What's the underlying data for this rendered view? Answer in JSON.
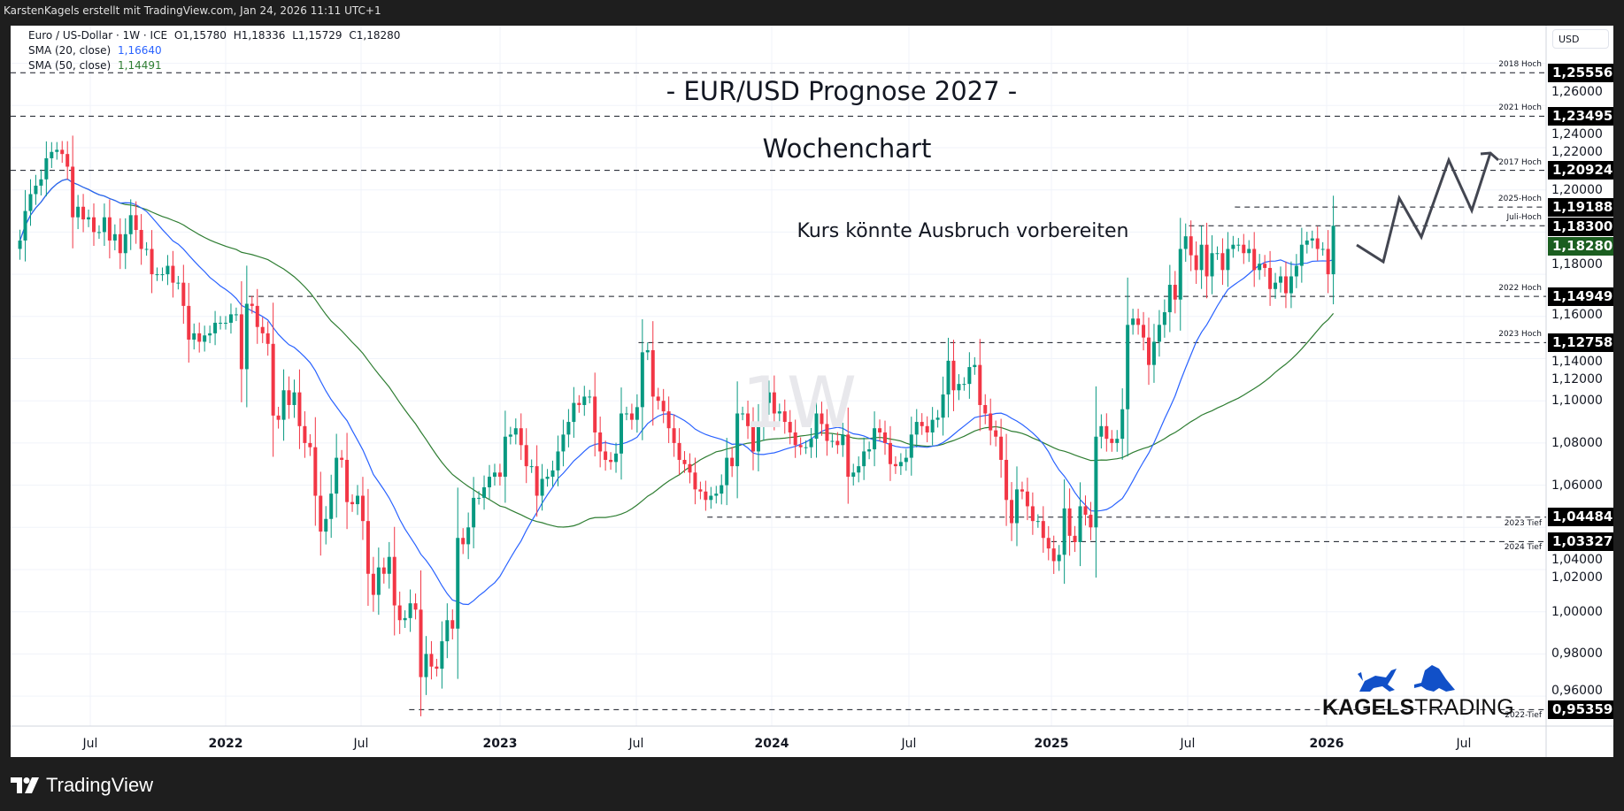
{
  "header": {
    "credit": "KarstenKagels erstellt mit TradingView.com, Jan 24, 2026 11:11 UTC+1"
  },
  "legend": {
    "symbol": "Euro / US-Dollar · 1W · ICE",
    "o": "O1,15780",
    "h": "H1,18336",
    "l": "L1,15729",
    "c": "C1,18280",
    "sma20_label": "SMA (20, close)",
    "sma20_value": "1,16640",
    "sma50_label": "SMA (50, close)",
    "sma50_value": "1,14491"
  },
  "annotations": {
    "title": "- EUR/USD Prognose 2027 -",
    "subtitle": "Wochenchart",
    "note": "Kurs könnte Ausbruch vorbereiten",
    "watermark": "1W"
  },
  "price_axis": {
    "currency": "USD",
    "ticks": [
      "1,26000",
      "1,24000",
      "1,22000",
      "1,20000",
      "1,18000",
      "1,16000",
      "1,14000",
      "1,12000",
      "1,10000",
      "1,08000",
      "1,06000",
      "1,04000",
      "1,02000",
      "1,00000",
      "0,98000",
      "0,96000"
    ],
    "current": {
      "value": "1,18280",
      "color": "#1b5e20"
    }
  },
  "levels": [
    {
      "label": "2018 Hoch",
      "value": "1,25556",
      "price": 1.25556,
      "from": "start"
    },
    {
      "label": "2021 Hoch",
      "value": "1,23495",
      "price": 1.23495,
      "from": "start"
    },
    {
      "label": "2017 Hoch",
      "value": "1,20924",
      "price": 1.20924,
      "from": "start"
    },
    {
      "label": "2025-Hoch",
      "value": "1,19188",
      "price": 1.19188,
      "from": "2025-09"
    },
    {
      "label": "Juli-Hoch",
      "value": "1,18300",
      "price": 1.183,
      "from": "2025-07"
    },
    {
      "label": "2022 Hoch",
      "value": "1,14949",
      "price": 1.14949,
      "from": "2022-02"
    },
    {
      "label": "2023 Hoch",
      "value": "1,12758",
      "price": 1.12758,
      "from": "2023-07"
    },
    {
      "label": "2023 Tief",
      "value": "1,04484",
      "price": 1.04484,
      "from": "2023-10"
    },
    {
      "label": "2024 Tief",
      "value": "1,03327",
      "price": 1.03327,
      "from": "2025-01"
    },
    {
      "label": "2022-Tief",
      "value": "0,95359",
      "price": 0.95359,
      "from": "2022-09"
    }
  ],
  "time_axis": [
    {
      "t": "Jul",
      "bold": false
    },
    {
      "t": "2022",
      "bold": true
    },
    {
      "t": "Jul",
      "bold": false
    },
    {
      "t": "2023",
      "bold": true
    },
    {
      "t": "Jul",
      "bold": false
    },
    {
      "t": "2024",
      "bold": true
    },
    {
      "t": "Jul",
      "bold": false
    },
    {
      "t": "2025",
      "bold": true
    },
    {
      "t": "Jul",
      "bold": false
    },
    {
      "t": "2026",
      "bold": true
    },
    {
      "t": "Jul",
      "bold": false
    }
  ],
  "chart_data": {
    "type": "candlestick",
    "interval": "1W",
    "first_week": "2021-03-29",
    "ylim": [
      0.94,
      1.265
    ],
    "colors": {
      "up": "#089981",
      "down": "#f23645",
      "sma20": "#2962ff",
      "sma50": "#2e7d32",
      "forecast": "#434651"
    },
    "close": [
      1.176,
      1.19,
      1.198,
      1.202,
      1.205,
      1.215,
      1.218,
      1.219,
      1.217,
      1.211,
      1.187,
      1.192,
      1.186,
      1.187,
      1.18,
      1.18,
      1.187,
      1.176,
      1.179,
      1.17,
      1.179,
      1.188,
      1.181,
      1.172,
      1.172,
      1.16,
      1.16,
      1.16,
      1.164,
      1.156,
      1.156,
      1.145,
      1.129,
      1.132,
      1.128,
      1.131,
      1.132,
      1.137,
      1.137,
      1.137,
      1.141,
      1.141,
      1.115,
      1.146,
      1.145,
      1.135,
      1.132,
      1.127,
      1.093,
      1.091,
      1.105,
      1.098,
      1.104,
      1.088,
      1.08,
      1.078,
      1.055,
      1.038,
      1.044,
      1.056,
      1.073,
      1.072,
      1.052,
      1.051,
      1.055,
      1.043,
      1.018,
      1.008,
      1.021,
      1.018,
      1.026,
      1.003,
      0.996,
      0.997,
      1.004,
      1.001,
      0.969,
      0.98,
      0.974,
      0.973,
      0.986,
      0.996,
      0.992,
      1.035,
      1.032,
      1.04,
      1.054,
      1.054,
      1.059,
      1.064,
      1.066,
      1.064,
      1.083,
      1.084,
      1.087,
      1.079,
      1.069,
      1.069,
      1.055,
      1.063,
      1.064,
      1.067,
      1.076,
      1.084,
      1.09,
      1.099,
      1.098,
      1.102,
      1.102,
      1.085,
      1.076,
      1.072,
      1.071,
      1.075,
      1.094,
      1.094,
      1.091,
      1.097,
      1.123,
      1.124,
      1.102,
      1.1,
      1.095,
      1.087,
      1.08,
      1.072,
      1.07,
      1.066,
      1.058,
      1.057,
      1.053,
      1.055,
      1.056,
      1.06,
      1.073,
      1.069,
      1.094,
      1.094,
      1.088,
      1.076,
      1.089,
      1.099,
      1.104,
      1.094,
      1.095,
      1.09,
      1.085,
      1.079,
      1.078,
      1.078,
      1.082,
      1.094,
      1.089,
      1.081,
      1.081,
      1.079,
      1.084,
      1.064,
      1.066,
      1.069,
      1.076,
      1.077,
      1.087,
      1.085,
      1.08,
      1.07,
      1.069,
      1.071,
      1.073,
      1.084,
      1.09,
      1.088,
      1.085,
      1.091,
      1.092,
      1.103,
      1.119,
      1.105,
      1.108,
      1.108,
      1.116,
      1.117,
      1.098,
      1.094,
      1.086,
      1.083,
      1.072,
      1.053,
      1.042,
      1.058,
      1.057,
      1.05,
      1.043,
      1.043,
      1.035,
      1.03,
      1.024,
      1.027,
      1.049,
      1.036,
      1.033,
      1.05,
      1.046,
      1.04,
      1.083,
      1.088,
      1.082,
      1.08,
      1.082,
      1.096,
      1.136,
      1.139,
      1.136,
      1.13,
      1.117,
      1.128,
      1.136,
      1.142,
      1.155,
      1.148,
      1.172,
      1.178,
      1.169,
      1.162,
      1.174,
      1.159,
      1.17,
      1.17,
      1.162,
      1.172,
      1.174,
      1.174,
      1.17,
      1.172,
      1.162,
      1.165,
      1.163,
      1.153,
      1.156,
      1.159,
      1.151,
      1.159,
      1.164,
      1.174,
      1.176,
      1.177,
      1.172,
      1.172,
      1.16,
      1.183
    ]
  },
  "logo": {
    "text_bold": "KAGELS",
    "text_light": "TRADING",
    "color": "#1150c8"
  },
  "footer": {
    "brand": "TradingView"
  }
}
